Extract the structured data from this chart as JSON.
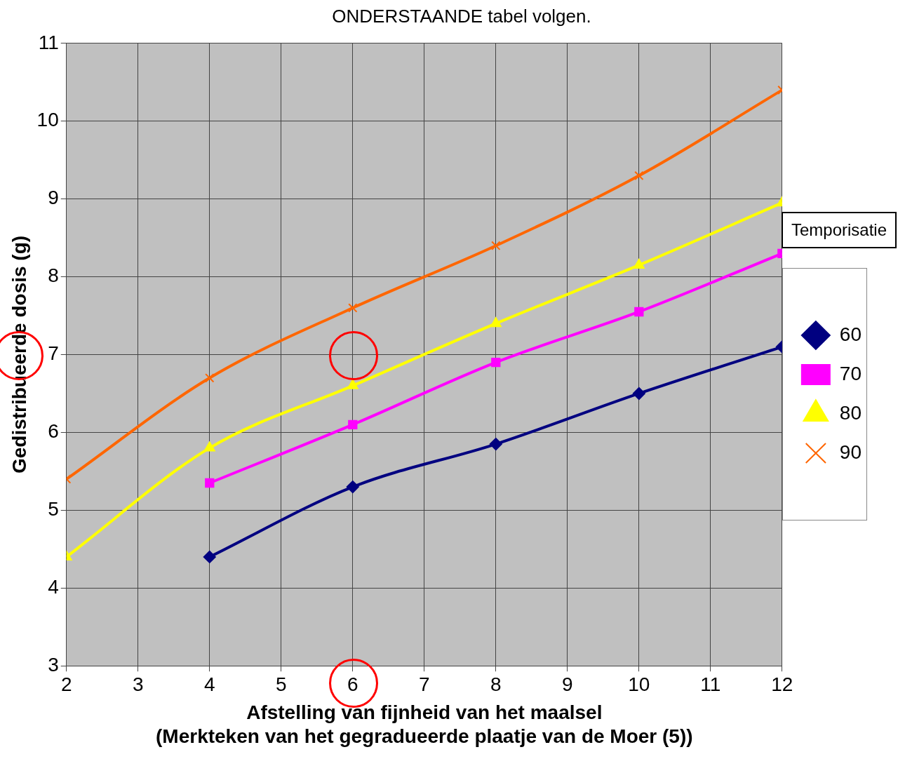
{
  "chart_data": {
    "type": "line",
    "annotations": [
      "ONDERSTAANDE tabel volgen."
    ],
    "xlabel": "Afstelling van fijnheid van het maalsel\n(Merkteken van het gegradueerde plaatje van de Moer (5))",
    "ylabel": "Gedistribueerde dosis (g)",
    "legend_title": "Temporisatie",
    "x": [
      2,
      4,
      6,
      8,
      10,
      12
    ],
    "series": [
      {
        "name": "60",
        "color": "#000080",
        "marker": "diamond",
        "values": [
          null,
          4.4,
          5.3,
          5.85,
          6.5,
          7.1
        ]
      },
      {
        "name": "70",
        "color": "#ff00ff",
        "marker": "square",
        "values": [
          null,
          5.35,
          6.1,
          6.9,
          7.55,
          8.3
        ]
      },
      {
        "name": "80",
        "color": "#ffff00",
        "marker": "triangle",
        "values": [
          4.4,
          5.8,
          6.6,
          7.4,
          8.15,
          8.95
        ]
      },
      {
        "name": "90",
        "color": "#ff6600",
        "marker": "cross",
        "values": [
          5.4,
          6.7,
          7.6,
          8.4,
          9.3,
          10.4
        ]
      }
    ],
    "xlim": [
      2,
      12
    ],
    "xticks": [
      2,
      3,
      4,
      5,
      6,
      7,
      8,
      9,
      10,
      11,
      12
    ],
    "ylim": [
      3,
      11
    ],
    "yticks": [
      3,
      4,
      5,
      6,
      7,
      8,
      9,
      10,
      11
    ],
    "grid": true,
    "legend": "right",
    "line_style": "solid"
  }
}
